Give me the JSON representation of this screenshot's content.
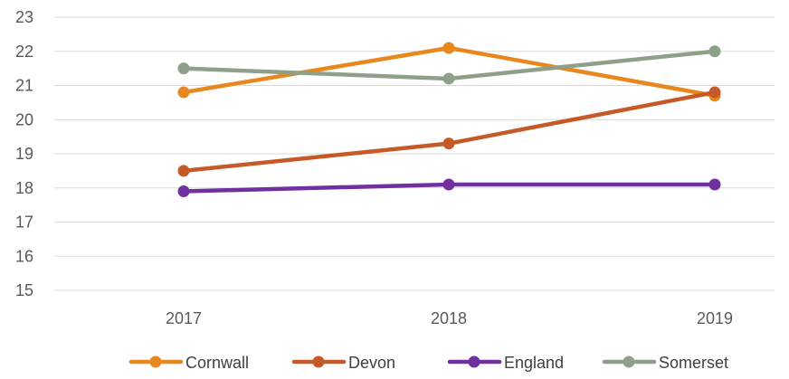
{
  "chart_data": {
    "type": "line",
    "title": "",
    "xlabel": "",
    "ylabel": "",
    "categories": [
      "2017",
      "2018",
      "2019"
    ],
    "ylim": [
      15,
      23
    ],
    "y_ticks": [
      "15",
      "16",
      "17",
      "18",
      "19",
      "20",
      "21",
      "22",
      "23"
    ],
    "grid": "horizontal",
    "legend_position": "bottom",
    "series": [
      {
        "name": "Cornwall",
        "color": "#E8871E",
        "values": [
          20.8,
          22.1,
          20.7
        ]
      },
      {
        "name": "Devon",
        "color": "#C55A28",
        "values": [
          18.5,
          19.3,
          20.8
        ]
      },
      {
        "name": "England",
        "color": "#7030A0",
        "values": [
          17.9,
          18.1,
          18.1
        ]
      },
      {
        "name": "Somerset",
        "color": "#8FA08A",
        "values": [
          21.5,
          21.2,
          22.0
        ]
      }
    ]
  }
}
